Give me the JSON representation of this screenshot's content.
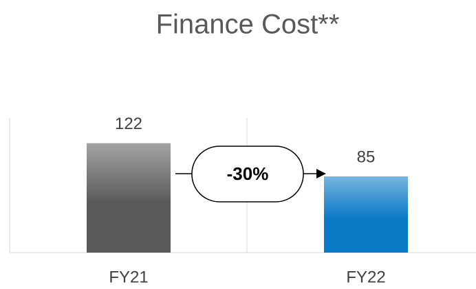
{
  "chart_data": {
    "type": "bar",
    "title": "Finance Cost**",
    "categories": [
      "FY21",
      "FY22"
    ],
    "values": [
      122,
      85
    ],
    "colors": [
      "#595959",
      "#0a79c6"
    ],
    "ylim": [
      0,
      150
    ],
    "annotation": "-30%"
  }
}
